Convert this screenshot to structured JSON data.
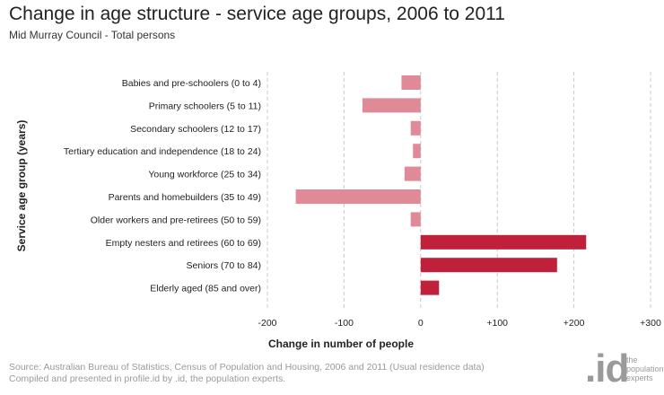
{
  "header": {
    "title": "Change in age structure - service age groups, 2006 to 2011",
    "subtitle": "Mid Murray Council - Total persons"
  },
  "footer": {
    "source_line": "Source: Australian Bureau of Statistics, Census of Population and Housing, 2006 and 2011 (Usual residence data)",
    "compiled_line": "Compiled and presented in profile.id by .id, the population experts."
  },
  "logo": {
    "mark": ".id",
    "tagline": "the population experts"
  },
  "colors": {
    "negative": "#e08a98",
    "positive": "#c0203a",
    "gridline": "#c8c8c8"
  },
  "chart_data": {
    "type": "bar",
    "orientation": "horizontal",
    "title": "Change in age structure - service age groups, 2006 to 2011",
    "xlabel": "Change in number of people",
    "ylabel": "Service age group (years)",
    "xlim": [
      -200,
      300
    ],
    "xticks": [
      -200,
      -100,
      0,
      100,
      200,
      300
    ],
    "xtick_labels": [
      "-200",
      "-100",
      "0",
      "+100",
      "+200",
      "+300"
    ],
    "grid": "vertical dashed",
    "categories": [
      "Babies and pre-schoolers (0 to 4)",
      "Primary schoolers (5 to 11)",
      "Secondary schoolers (12 to 17)",
      "Tertiary education and independence (18 to 24)",
      "Young workforce (25 to 34)",
      "Parents and homebuilders (35 to 49)",
      "Older workers and pre-retirees (50 to 59)",
      "Empty nesters and retirees (60 to 69)",
      "Seniors (70 to 84)",
      "Elderly aged (85 and over)"
    ],
    "values": [
      -25,
      -76,
      -13,
      -10,
      -21,
      -163,
      -13,
      216,
      178,
      24
    ]
  }
}
